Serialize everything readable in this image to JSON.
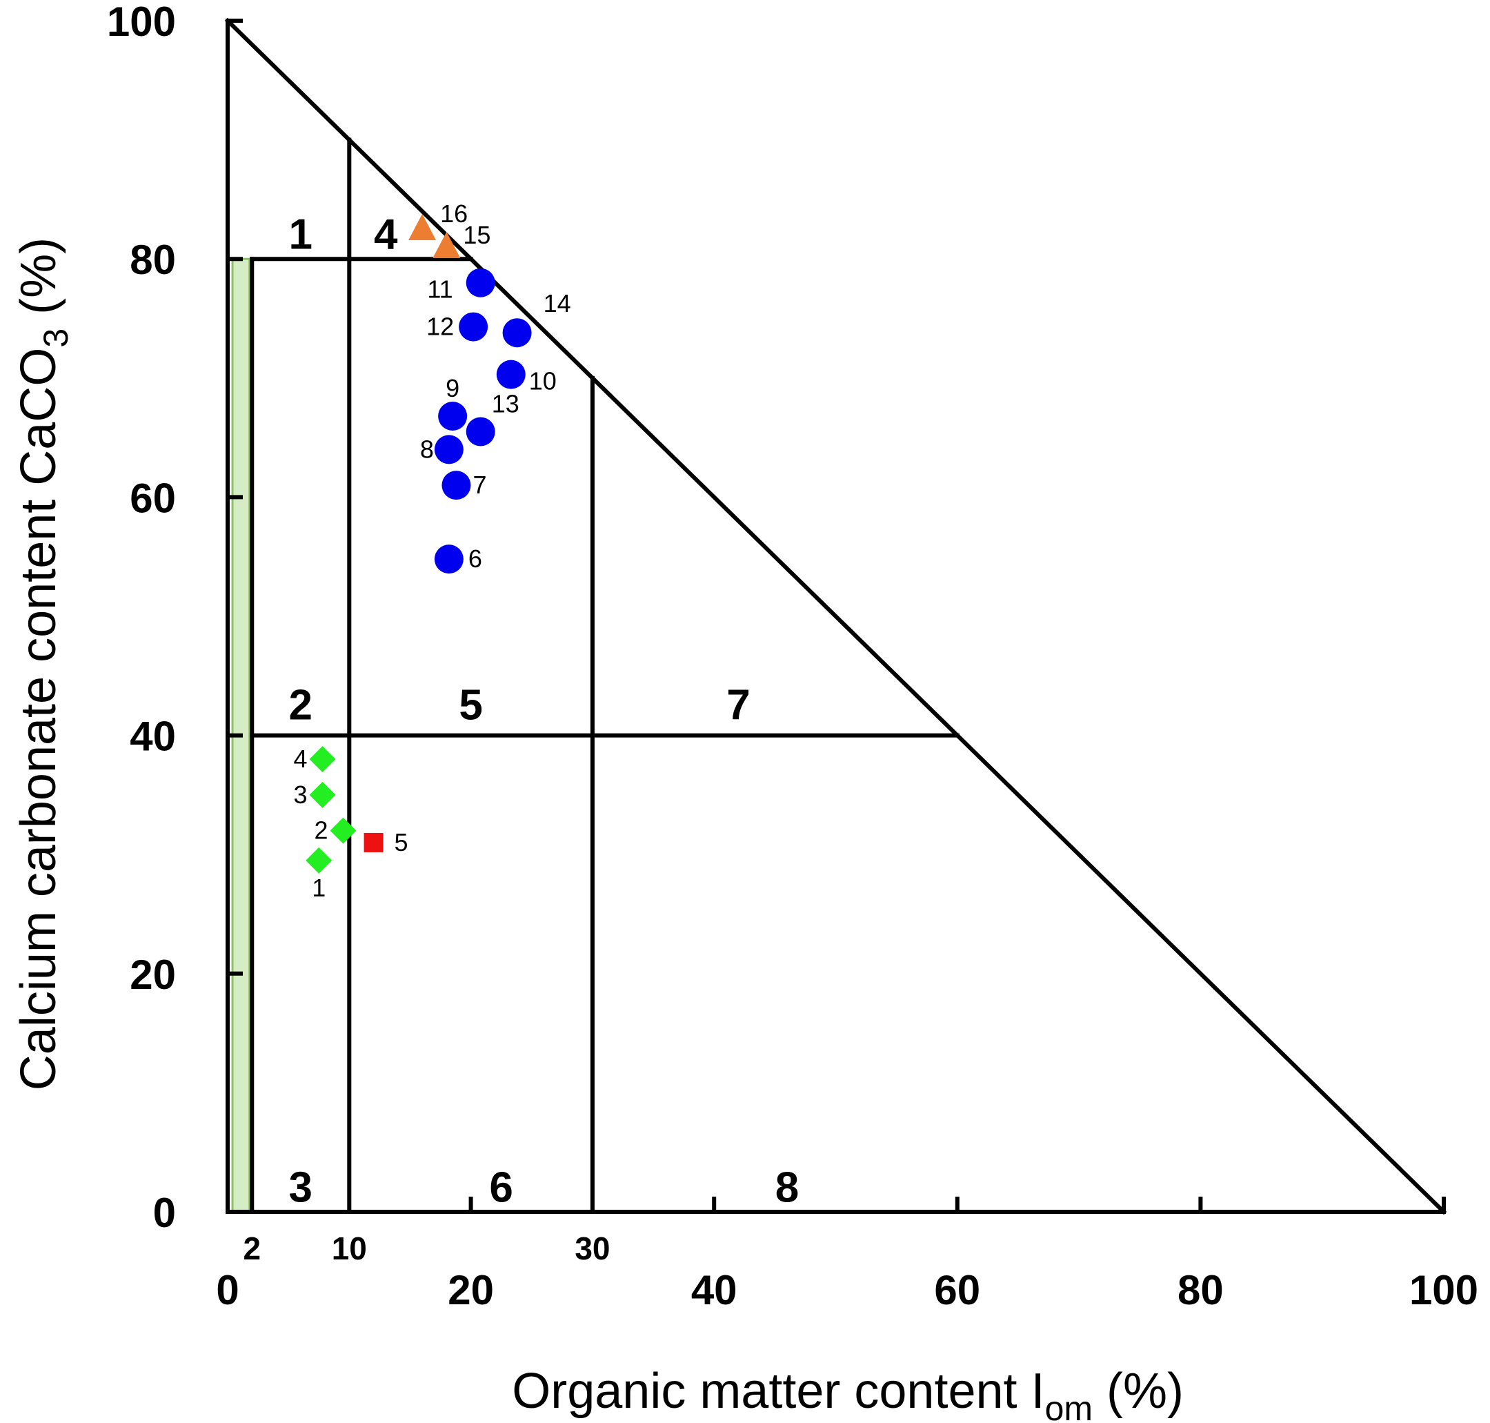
{
  "chart_data": {
    "type": "scatter",
    "xlabel": "Organic matter content I",
    "xlabel_sub": "om",
    "xlabel_unit": " (%)",
    "ylabel": "Calcium carbonate content CaCO",
    "ylabel_sub": "3",
    "ylabel_unit": " (%)",
    "xlim": [
      0,
      100
    ],
    "ylim": [
      0,
      100
    ],
    "x_ticks": [
      "0",
      "20",
      "40",
      "60",
      "80",
      "100"
    ],
    "y_ticks": [
      "0",
      "20",
      "40",
      "60",
      "80",
      "100"
    ],
    "x_boundary_ticks": [
      "2",
      "10",
      "30"
    ],
    "grid": false,
    "boundaries": [
      {
        "from": [
          2,
          0
        ],
        "to": [
          2,
          80
        ]
      },
      {
        "from": [
          2,
          80
        ],
        "to": [
          20,
          80
        ]
      },
      {
        "from": [
          2,
          40
        ],
        "to": [
          60,
          40
        ]
      },
      {
        "from": [
          10,
          0
        ],
        "to": [
          10,
          90
        ]
      },
      {
        "from": [
          30,
          0
        ],
        "to": [
          30,
          70
        ]
      }
    ],
    "regions": [
      {
        "label": "1",
        "x": 6,
        "y": 82
      },
      {
        "label": "4",
        "x": 13,
        "y": 82
      },
      {
        "label": "2",
        "x": 6,
        "y": 42.5
      },
      {
        "label": "5",
        "x": 20,
        "y": 42.5
      },
      {
        "label": "7",
        "x": 42,
        "y": 42.5
      },
      {
        "label": "3",
        "x": 6,
        "y": 2
      },
      {
        "label": "6",
        "x": 22.5,
        "y": 2
      },
      {
        "label": "8",
        "x": 46,
        "y": 2
      }
    ],
    "series": [
      {
        "marker": "diamond",
        "color": "#22ee22",
        "points": [
          {
            "label": "1",
            "x": 7.5,
            "y": 29.5
          },
          {
            "label": "2",
            "x": 9.5,
            "y": 32
          },
          {
            "label": "3",
            "x": 7.8,
            "y": 35
          },
          {
            "label": "4",
            "x": 7.8,
            "y": 38
          }
        ]
      },
      {
        "marker": "square",
        "color": "#ee1111",
        "points": [
          {
            "label": "5",
            "x": 12,
            "y": 31
          }
        ]
      },
      {
        "marker": "circle",
        "color": "#0000ee",
        "points": [
          {
            "label": "6",
            "x": 18.2,
            "y": 54.8
          },
          {
            "label": "7",
            "x": 18.8,
            "y": 61
          },
          {
            "label": "8",
            "x": 18.2,
            "y": 64
          },
          {
            "label": "9",
            "x": 18.5,
            "y": 66.8
          },
          {
            "label": "10",
            "x": 23.3,
            "y": 70.3
          },
          {
            "label": "11",
            "x": 20.8,
            "y": 78
          },
          {
            "label": "12",
            "x": 20.2,
            "y": 74.3
          },
          {
            "label": "13",
            "x": 20.8,
            "y": 65.5
          },
          {
            "label": "14",
            "x": 23.8,
            "y": 73.8
          }
        ]
      },
      {
        "marker": "triangle",
        "color": "#ed7d31",
        "points": [
          {
            "label": "15",
            "x": 18,
            "y": 81
          },
          {
            "label": "16",
            "x": 16,
            "y": 82.5
          }
        ]
      }
    ]
  }
}
